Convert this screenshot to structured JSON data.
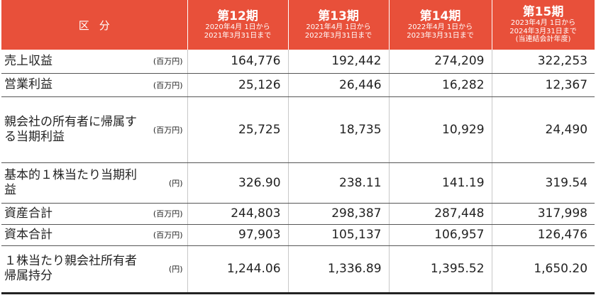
{
  "header": {
    "label": "区分",
    "periods": [
      {
        "title": "第12期",
        "from": "2020年4月 1日から",
        "to": "2021年3月31日まで",
        "note": ""
      },
      {
        "title": "第13期",
        "from": "2021年4月 1日から",
        "to": "2022年3月31日まで",
        "note": ""
      },
      {
        "title": "第14期",
        "from": "2022年4月 1日から",
        "to": "2023年3月31日まで",
        "note": ""
      },
      {
        "title": "第15期",
        "from": "2023年4月 1日から",
        "to": "2024年3月31日まで",
        "note": "(当連結会計年度)"
      }
    ]
  },
  "rows": [
    {
      "label": "売上収益",
      "unit": "(百万円)",
      "values": [
        "164,776",
        "192,442",
        "274,209",
        "322,253"
      ]
    },
    {
      "label": "営業利益",
      "unit": "(百万円)",
      "values": [
        "25,126",
        "26,446",
        "16,282",
        "12,367"
      ]
    },
    {
      "label": "親会社の所有者に帰属する当期利益",
      "unit": "(百万円)",
      "values": [
        "25,725",
        "18,735",
        "10,929",
        "24,490"
      ]
    },
    {
      "label": "基本的１株当たり当期利益",
      "unit": "(円)",
      "values": [
        "326.90",
        "238.11",
        "141.19",
        "319.54"
      ]
    },
    {
      "label": "資産合計",
      "unit": "(百万円)",
      "values": [
        "244,803",
        "298,387",
        "287,448",
        "317,998"
      ]
    },
    {
      "label": "資本合計",
      "unit": "(百万円)",
      "values": [
        "97,903",
        "105,137",
        "106,957",
        "126,476"
      ]
    },
    {
      "label": "１株当たり親会社所有者帰属持分",
      "unit": "(円)",
      "values": [
        "1,244.06",
        "1,336.89",
        "1,395.52",
        "1,650.20"
      ]
    }
  ]
}
